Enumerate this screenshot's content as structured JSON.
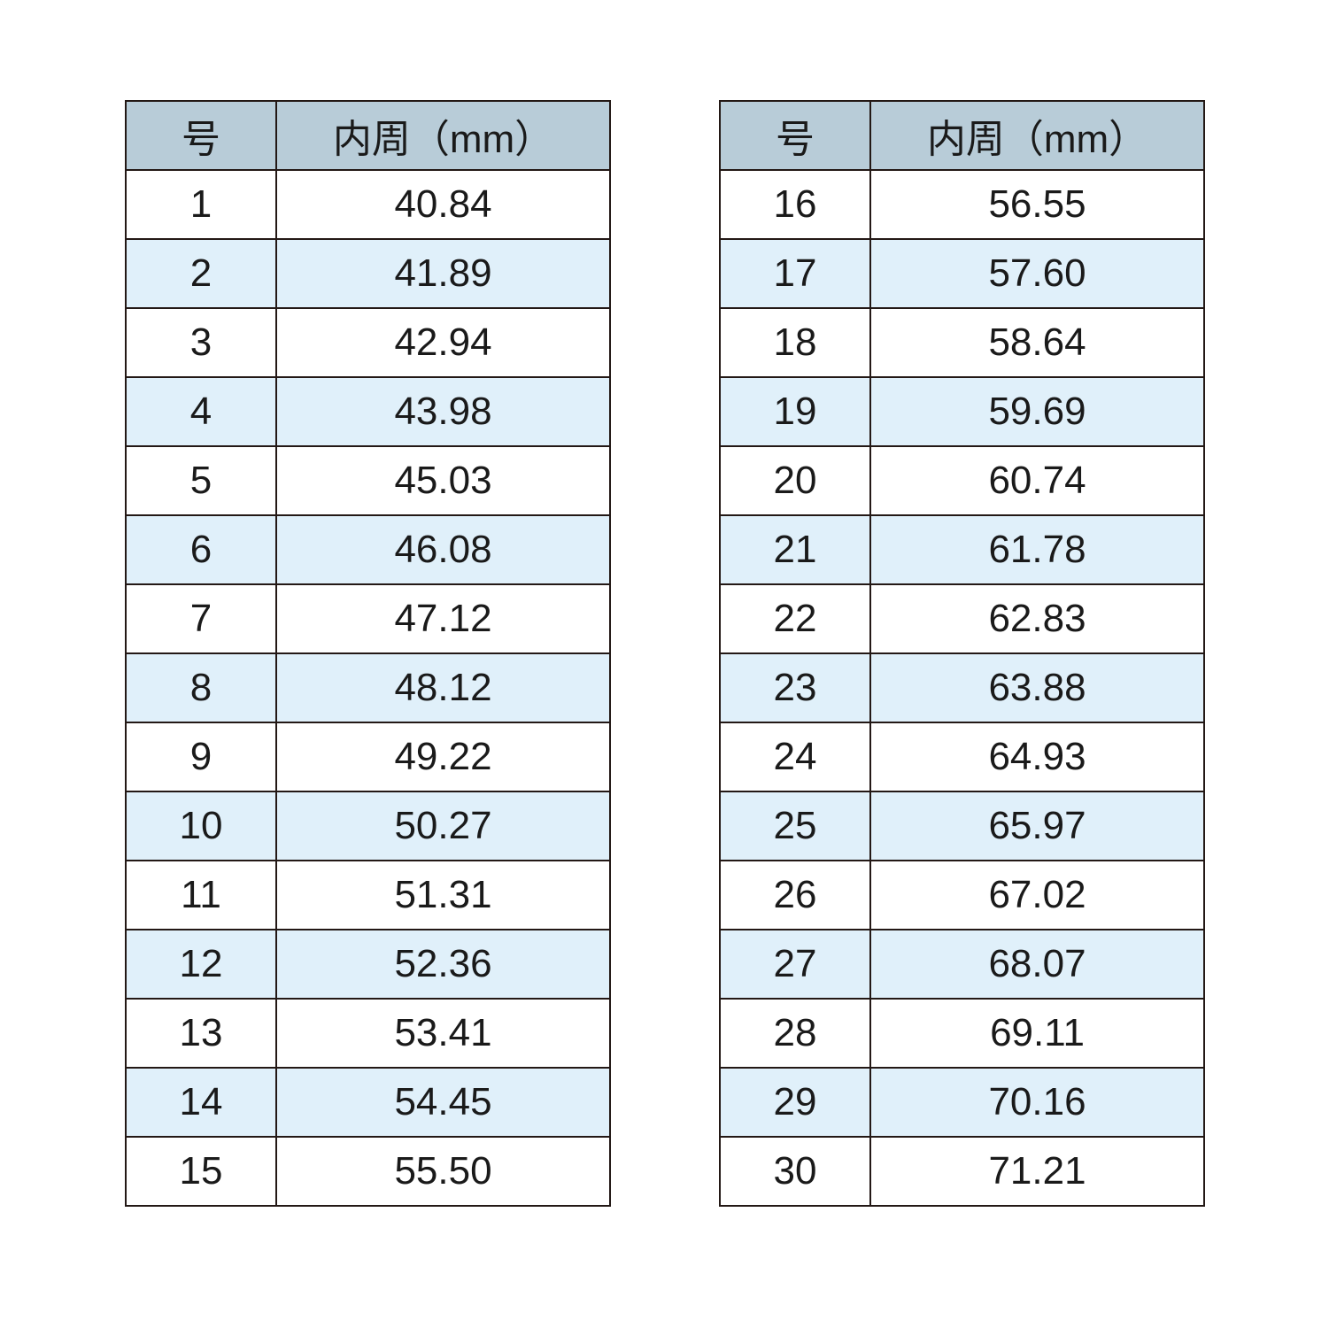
{
  "header": {
    "size": "号",
    "circumference": "内周（mm）"
  },
  "colors": {
    "header_bg": "#b8ccd8",
    "alt_row_bg": "#e0f0fa",
    "border": "#231815"
  },
  "tables": [
    {
      "rows": [
        {
          "size": "1",
          "mm": "40.84"
        },
        {
          "size": "2",
          "mm": "41.89"
        },
        {
          "size": "3",
          "mm": "42.94"
        },
        {
          "size": "4",
          "mm": "43.98"
        },
        {
          "size": "5",
          "mm": "45.03"
        },
        {
          "size": "6",
          "mm": "46.08"
        },
        {
          "size": "7",
          "mm": "47.12"
        },
        {
          "size": "8",
          "mm": "48.12"
        },
        {
          "size": "9",
          "mm": "49.22"
        },
        {
          "size": "10",
          "mm": "50.27"
        },
        {
          "size": "11",
          "mm": "51.31"
        },
        {
          "size": "12",
          "mm": "52.36"
        },
        {
          "size": "13",
          "mm": "53.41"
        },
        {
          "size": "14",
          "mm": "54.45"
        },
        {
          "size": "15",
          "mm": "55.50"
        }
      ]
    },
    {
      "rows": [
        {
          "size": "16",
          "mm": "56.55"
        },
        {
          "size": "17",
          "mm": "57.60"
        },
        {
          "size": "18",
          "mm": "58.64"
        },
        {
          "size": "19",
          "mm": "59.69"
        },
        {
          "size": "20",
          "mm": "60.74"
        },
        {
          "size": "21",
          "mm": "61.78"
        },
        {
          "size": "22",
          "mm": "62.83"
        },
        {
          "size": "23",
          "mm": "63.88"
        },
        {
          "size": "24",
          "mm": "64.93"
        },
        {
          "size": "25",
          "mm": "65.97"
        },
        {
          "size": "26",
          "mm": "67.02"
        },
        {
          "size": "27",
          "mm": "68.07"
        },
        {
          "size": "28",
          "mm": "69.11"
        },
        {
          "size": "29",
          "mm": "70.16"
        },
        {
          "size": "30",
          "mm": "71.21"
        }
      ]
    }
  ]
}
